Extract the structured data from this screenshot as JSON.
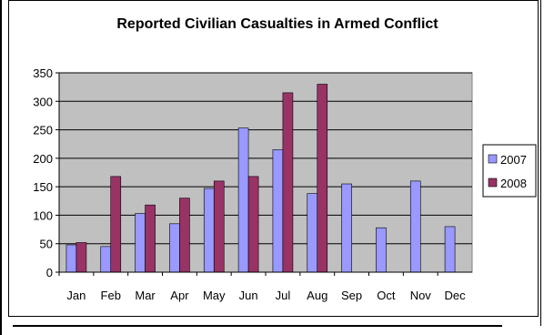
{
  "chart_data": {
    "type": "bar",
    "title": "Reported Civilian Casualties in Armed Conflict",
    "xlabel": "",
    "ylabel": "",
    "categories": [
      "Jan",
      "Feb",
      "Mar",
      "Apr",
      "May",
      "Jun",
      "Jul",
      "Aug",
      "Sep",
      "Oct",
      "Nov",
      "Dec"
    ],
    "series": [
      {
        "name": "2007",
        "color": "#9999ff",
        "values": [
          48,
          45,
          103,
          85,
          147,
          253,
          215,
          138,
          155,
          78,
          160,
          80
        ]
      },
      {
        "name": "2008",
        "color": "#993366",
        "values": [
          52,
          168,
          118,
          130,
          160,
          168,
          315,
          330,
          null,
          null,
          null,
          null
        ]
      }
    ],
    "ylim": [
      0,
      350
    ],
    "yticks": [
      "0",
      "50",
      "100",
      "150",
      "200",
      "250",
      "300",
      "350"
    ],
    "grid": true,
    "plot_background": "#c0c0c0",
    "legend_position": "right"
  }
}
